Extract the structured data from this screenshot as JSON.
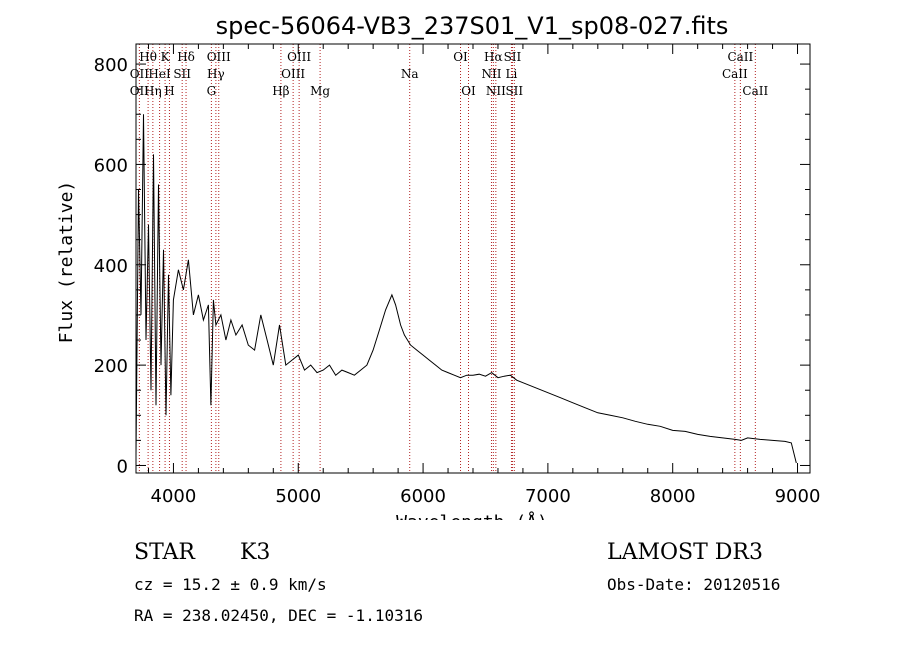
{
  "chart_data": {
    "type": "line",
    "title": "spec-56064-VB3_237S01_V1_sp08-027.fits",
    "xlabel": "Wavelength (Å)",
    "ylabel": "Flux (relative)",
    "xlim": [
      3700,
      9100
    ],
    "ylim": [
      -15,
      840
    ],
    "xticks": [
      4000,
      5000,
      6000,
      7000,
      8000,
      9000
    ],
    "yticks": [
      0,
      200,
      400,
      600,
      800
    ],
    "series": [
      {
        "name": "flux",
        "x": [
          3700,
          3720,
          3740,
          3760,
          3780,
          3800,
          3820,
          3840,
          3860,
          3880,
          3900,
          3920,
          3940,
          3960,
          3980,
          4000,
          4040,
          4080,
          4120,
          4160,
          4200,
          4240,
          4280,
          4300,
          4320,
          4340,
          4380,
          4420,
          4460,
          4500,
          4550,
          4600,
          4650,
          4700,
          4750,
          4800,
          4850,
          4900,
          4950,
          5000,
          5050,
          5100,
          5150,
          5200,
          5250,
          5300,
          5350,
          5400,
          5450,
          5500,
          5550,
          5600,
          5650,
          5700,
          5750,
          5780,
          5800,
          5820,
          5850,
          5900,
          5950,
          6000,
          6050,
          6100,
          6150,
          6200,
          6250,
          6300,
          6350,
          6400,
          6450,
          6500,
          6550,
          6600,
          6650,
          6700,
          6750,
          6800,
          6900,
          7000,
          7100,
          7200,
          7300,
          7400,
          7500,
          7600,
          7700,
          7800,
          7900,
          8000,
          8100,
          8200,
          8300,
          8400,
          8500,
          8550,
          8600,
          8700,
          8800,
          8900,
          8950,
          8990
        ],
        "y": [
          20,
          550,
          300,
          700,
          250,
          480,
          150,
          620,
          120,
          560,
          200,
          430,
          100,
          380,
          140,
          330,
          390,
          350,
          410,
          300,
          340,
          290,
          320,
          120,
          330,
          280,
          300,
          250,
          290,
          260,
          280,
          240,
          230,
          300,
          250,
          200,
          280,
          200,
          210,
          220,
          190,
          200,
          185,
          190,
          200,
          180,
          190,
          185,
          180,
          190,
          200,
          230,
          270,
          310,
          340,
          320,
          300,
          280,
          260,
          240,
          230,
          220,
          210,
          200,
          190,
          185,
          180,
          175,
          180,
          180,
          182,
          178,
          185,
          175,
          178,
          180,
          170,
          165,
          155,
          145,
          135,
          125,
          115,
          105,
          100,
          95,
          88,
          82,
          78,
          70,
          68,
          62,
          58,
          55,
          52,
          50,
          55,
          52,
          50,
          48,
          45,
          5
        ]
      }
    ],
    "line_labels": [
      {
        "text": "Hθ",
        "wave": 3797,
        "row": 1
      },
      {
        "text": "OII",
        "wave": 3727,
        "row": 2
      },
      {
        "text": "OII",
        "wave": 3727,
        "row": 3
      },
      {
        "text": "HeI",
        "wave": 3889,
        "row": 2
      },
      {
        "text": "Hη",
        "wave": 3835,
        "row": 3
      },
      {
        "text": "K",
        "wave": 3933,
        "row": 1
      },
      {
        "text": "H",
        "wave": 3968,
        "row": 3
      },
      {
        "text": "SII",
        "wave": 4070,
        "row": 2
      },
      {
        "text": "Hδ",
        "wave": 4101,
        "row": 1
      },
      {
        "text": "OIII",
        "wave": 4363,
        "row": 1
      },
      {
        "text": "Hγ",
        "wave": 4340,
        "row": 2
      },
      {
        "text": "G",
        "wave": 4304,
        "row": 3
      },
      {
        "text": "OIII",
        "wave": 5007,
        "row": 1
      },
      {
        "text": "OIII",
        "wave": 4959,
        "row": 2
      },
      {
        "text": "Hβ",
        "wave": 4861,
        "row": 3
      },
      {
        "text": "Mg",
        "wave": 5175,
        "row": 3
      },
      {
        "text": "Na",
        "wave": 5893,
        "row": 2
      },
      {
        "text": "OI",
        "wave": 6300,
        "row": 1
      },
      {
        "text": "OI",
        "wave": 6364,
        "row": 3
      },
      {
        "text": "Hα",
        "wave": 6563,
        "row": 1
      },
      {
        "text": "NII",
        "wave": 6548,
        "row": 2
      },
      {
        "text": "NII",
        "wave": 6583,
        "row": 3
      },
      {
        "text": "SII",
        "wave": 6716,
        "row": 1
      },
      {
        "text": "Li",
        "wave": 6708,
        "row": 2
      },
      {
        "text": "SII",
        "wave": 6731,
        "row": 3
      },
      {
        "text": "CaII",
        "wave": 8542,
        "row": 1
      },
      {
        "text": "CaII",
        "wave": 8498,
        "row": 2
      },
      {
        "text": "CaII",
        "wave": 8662,
        "row": 3
      }
    ],
    "line_waves": [
      3727,
      3797,
      3835,
      3889,
      3933,
      3968,
      4070,
      4101,
      4304,
      4340,
      4363,
      4861,
      4959,
      5007,
      5175,
      5893,
      6300,
      6364,
      6548,
      6563,
      6583,
      6708,
      6716,
      6731,
      8498,
      8542,
      8662
    ]
  },
  "info": {
    "class": "STAR",
    "subclass": "K3",
    "cz": "cz = 15.2 ± 0.9 km/s",
    "coords": "RA = 238.02450, DEC =  -1.10316",
    "survey": "LAMOST DR3",
    "obsdate": "Obs-Date: 20120516"
  }
}
